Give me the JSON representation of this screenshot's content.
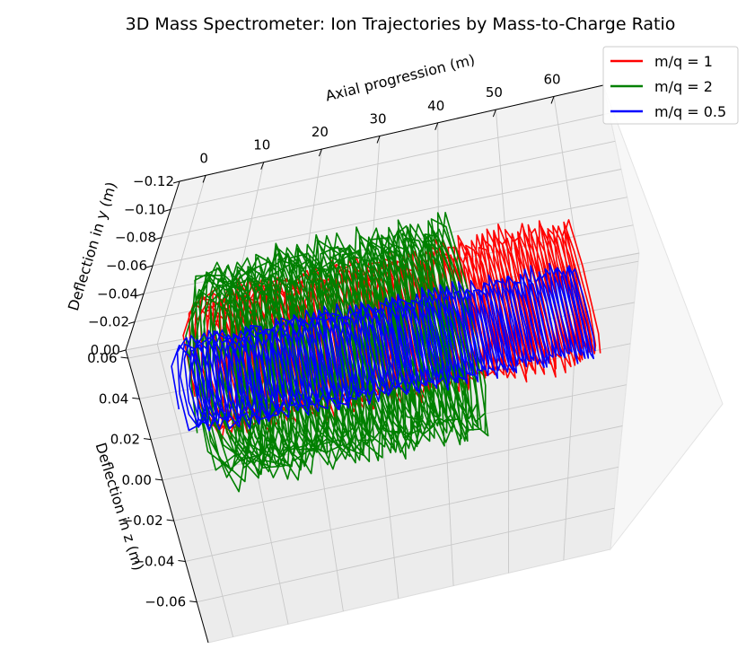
{
  "chart_data": {
    "type": "line",
    "subtype": "3d",
    "title": "3D Mass Spectrometer: Ion Trajectories by Mass-to-Charge Ratio",
    "xlabel": "Axial progression (m)",
    "ylabel": "Deflection in y (m)",
    "zlabel": "Deflection in z (m)",
    "x_ticks": [
      "0",
      "10",
      "20",
      "30",
      "40",
      "50",
      "60"
    ],
    "y_ticks": [
      "−0.12",
      "−0.10",
      "−0.08",
      "−0.06",
      "−0.04",
      "−0.02",
      "0.00"
    ],
    "z_ticks": [
      "0.06",
      "0.04",
      "0.02",
      "0.00",
      "−0.02",
      "−0.04",
      "−0.06"
    ],
    "xlim": [
      -5,
      70
    ],
    "ylim": [
      -0.13,
      0.005
    ],
    "zlim": [
      -0.06,
      0.07
    ],
    "grid": true,
    "legend_position": "top-right",
    "series": [
      {
        "name": "m/q = 1",
        "color": "#ff0000",
        "x_range": [
          0,
          60
        ],
        "y_center": -0.05,
        "z_center": 0.03,
        "radius": 0.03
      },
      {
        "name": "m/q = 2",
        "color": "#008000",
        "x_range": [
          0,
          40
        ],
        "y_center": -0.06,
        "z_center": 0.02,
        "radius": 0.045
      },
      {
        "name": "m/q = 0.5",
        "color": "#0000ff",
        "x_range": [
          0,
          60
        ],
        "y_center": -0.015,
        "z_center": 0.04,
        "radius": 0.02
      }
    ]
  }
}
